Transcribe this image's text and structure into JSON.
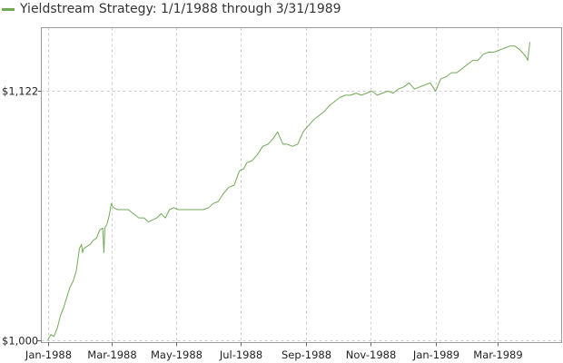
{
  "chart_data": {
    "type": "line",
    "title": "",
    "xlabel": "",
    "ylabel": "",
    "legend": "top-left",
    "grid": true,
    "x_tick_labels": [
      "Jan-1988",
      "Mar-1988",
      "May-1988",
      "Jul-1988",
      "Sep-1988",
      "Nov-1988",
      "Jan-1989",
      "Mar-1989"
    ],
    "x_ticks": [
      "1988-01-01",
      "1988-03-01",
      "1988-05-01",
      "1988-07-01",
      "1988-09-01",
      "1988-11-01",
      "1989-01-01",
      "1989-03-01"
    ],
    "xlim": [
      "1987-12-26",
      "1989-04-30"
    ],
    "y_tick_labels": [
      "$1,000",
      "$1,122"
    ],
    "y_ticks": [
      1000,
      1122
    ],
    "ylim": [
      999,
      1153
    ],
    "series": [
      {
        "name": "Yieldstream Strategy: 1/1/1988 through 3/31/1989",
        "color": "#72a958",
        "x": [
          "1988-01-01",
          "1988-01-04",
          "1988-01-07",
          "1988-01-10",
          "1988-01-13",
          "1988-01-16",
          "1988-01-19",
          "1988-01-22",
          "1988-01-25",
          "1988-01-28",
          "1988-01-31",
          "1988-02-02",
          "1988-02-03",
          "1988-02-04",
          "1988-02-07",
          "1988-02-10",
          "1988-02-13",
          "1988-02-16",
          "1988-02-19",
          "1988-02-22",
          "1988-02-23",
          "1988-02-24",
          "1988-02-26",
          "1988-02-28",
          "1988-03-01",
          "1988-03-03",
          "1988-03-07",
          "1988-03-12",
          "1988-03-17",
          "1988-03-22",
          "1988-03-27",
          "1988-04-01",
          "1988-04-05",
          "1988-04-09",
          "1988-04-13",
          "1988-04-17",
          "1988-04-21",
          "1988-04-25",
          "1988-04-29",
          "1988-05-03",
          "1988-05-07",
          "1988-05-12",
          "1988-05-17",
          "1988-05-22",
          "1988-05-27",
          "1988-06-01",
          "1988-06-05",
          "1988-06-10",
          "1988-06-15",
          "1988-06-20",
          "1988-06-25",
          "1988-06-30",
          "1988-07-04",
          "1988-07-07",
          "1988-07-12",
          "1988-07-17",
          "1988-07-22",
          "1988-07-27",
          "1988-08-01",
          "1988-08-05",
          "1988-08-10",
          "1988-08-14",
          "1988-08-19",
          "1988-08-24",
          "1988-08-29",
          "1988-09-01",
          "1988-09-03",
          "1988-09-08",
          "1988-09-13",
          "1988-09-18",
          "1988-09-23",
          "1988-09-28",
          "1988-10-03",
          "1988-10-08",
          "1988-10-13",
          "1988-10-18",
          "1988-10-23",
          "1988-10-28",
          "1988-11-02",
          "1988-11-07",
          "1988-11-12",
          "1988-11-17",
          "1988-11-22",
          "1988-11-27",
          "1988-12-02",
          "1988-12-07",
          "1988-12-12",
          "1988-12-17",
          "1988-12-22",
          "1988-12-27",
          "1989-01-01",
          "1989-01-06",
          "1989-01-11",
          "1989-01-16",
          "1989-01-21",
          "1989-01-26",
          "1989-01-31",
          "1989-02-05",
          "1989-02-10",
          "1989-02-15",
          "1989-02-20",
          "1989-02-25",
          "1989-03-02",
          "1989-03-07",
          "1989-03-12",
          "1989-03-17",
          "1989-03-22",
          "1989-03-27",
          "1989-03-29",
          "1989-03-31"
        ],
        "y": [
          1000,
          1003,
          1002,
          1006,
          1012,
          1016,
          1021,
          1026,
          1029,
          1034,
          1045,
          1047,
          1043,
          1045,
          1046,
          1047,
          1049,
          1050,
          1054,
          1055,
          1043,
          1055,
          1057,
          1061,
          1067,
          1065,
          1064,
          1064,
          1064,
          1062,
          1060,
          1060,
          1058,
          1059,
          1060,
          1062,
          1060,
          1064,
          1065,
          1064,
          1064,
          1064,
          1064,
          1064,
          1064,
          1065,
          1067,
          1068,
          1072,
          1075,
          1076,
          1083,
          1084,
          1087,
          1088,
          1091,
          1095,
          1096,
          1099,
          1102,
          1096,
          1096,
          1095,
          1096,
          1102,
          1104,
          1105,
          1108,
          1110,
          1112,
          1115,
          1117,
          1119,
          1120,
          1120,
          1121,
          1120,
          1121,
          1122,
          1120,
          1121,
          1122,
          1121,
          1123,
          1124,
          1126,
          1123,
          1124,
          1125,
          1126,
          1122,
          1128,
          1129,
          1131,
          1131,
          1133,
          1135,
          1137,
          1137,
          1140,
          1141,
          1141,
          1142,
          1143,
          1144,
          1144,
          1142,
          1139,
          1137,
          1146
        ]
      }
    ]
  }
}
